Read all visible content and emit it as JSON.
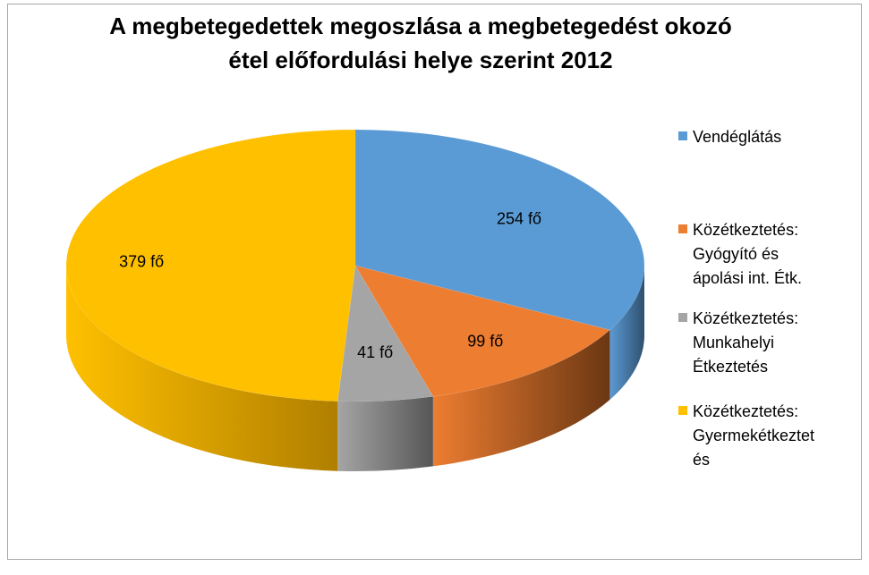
{
  "chart_data": {
    "type": "pie",
    "title_lines": [
      "A megbetegedettek megoszlása a megbetegedést okozó",
      "étel előfordulási helye szerint 2012"
    ],
    "unit": "fő",
    "slices": [
      {
        "name": "Vendéglátás",
        "value": 254,
        "label": "254 fő",
        "color": "#5b9bd5",
        "side_color": "#2f4f6d"
      },
      {
        "name": "Közétkeztetés: Gyógyító és ápolási int. Étk.",
        "value": 99,
        "label": "99 fő",
        "color": "#ed7d31",
        "side_color": "#6b3713"
      },
      {
        "name": "Közétkeztetés: Munkahelyi Étkeztetés",
        "value": 41,
        "label": "41 fő",
        "color": "#a5a5a5",
        "side_color": "#565656"
      },
      {
        "name": "Közétkeztetés: Gyermekétkeztetés",
        "value": 379,
        "label": "379 fő",
        "color": "#ffc000",
        "side_color": "#b07f00"
      }
    ],
    "legend": {
      "placement": "right",
      "items": [
        {
          "lines": [
            "Vendéglátás"
          ],
          "color": "#5b9bd5"
        },
        {
          "lines": [
            "Közétkeztetés:",
            "Gyógyító és",
            "ápolási int. Étk."
          ],
          "color": "#ed7d31"
        },
        {
          "lines": [
            "Közétkeztetés:",
            "Munkahelyi",
            "Étkeztetés"
          ],
          "color": "#a5a5a5"
        },
        {
          "lines": [
            "Közétkeztetés:",
            "Gyermekétkeztet",
            "és"
          ],
          "color": "#ffc000"
        }
      ]
    }
  }
}
